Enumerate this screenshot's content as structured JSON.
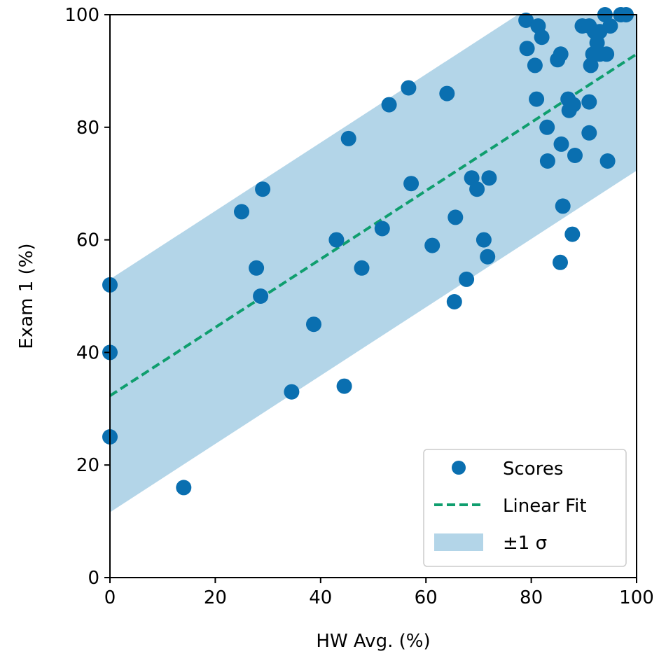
{
  "colors": {
    "scores": "#0a6fb0",
    "fit": "#0f9e6e",
    "band": "#b3d5e8",
    "axis": "#000000",
    "legend_border": "#cccccc"
  },
  "chart_data": {
    "type": "scatter",
    "title": "",
    "xlabel": "HW Avg. (%)",
    "ylabel": "Exam 1 (%)",
    "xlim": [
      0,
      100
    ],
    "ylim": [
      0,
      100
    ],
    "xticks": [
      "0",
      "20",
      "40",
      "60",
      "80",
      "100"
    ],
    "yticks": [
      "0",
      "20",
      "40",
      "60",
      "80",
      "100"
    ],
    "grid": false,
    "legend_position": "bottom-right",
    "fit": {
      "name": "Linear Fit",
      "intercept": 32.3,
      "slope": 0.607
    },
    "band": {
      "name": "±1 σ",
      "sigma": 20.7
    },
    "series": [
      {
        "name": "Scores",
        "points": [
          [
            0,
            52
          ],
          [
            0,
            40
          ],
          [
            0,
            25
          ],
          [
            14,
            16
          ],
          [
            25,
            65
          ],
          [
            27.8,
            55
          ],
          [
            28.6,
            50
          ],
          [
            29,
            69
          ],
          [
            34.5,
            33
          ],
          [
            38.7,
            45
          ],
          [
            43,
            60
          ],
          [
            44.5,
            34
          ],
          [
            45.3,
            78
          ],
          [
            47.8,
            55
          ],
          [
            51.7,
            62
          ],
          [
            53,
            84
          ],
          [
            56.7,
            87
          ],
          [
            57.2,
            70
          ],
          [
            61.2,
            59
          ],
          [
            64,
            86
          ],
          [
            65.4,
            49
          ],
          [
            65.6,
            64
          ],
          [
            67.7,
            53
          ],
          [
            68.7,
            71
          ],
          [
            69.7,
            69
          ],
          [
            71,
            60
          ],
          [
            71.7,
            57
          ],
          [
            72,
            71
          ],
          [
            79,
            99
          ],
          [
            79.2,
            94
          ],
          [
            80.7,
            91
          ],
          [
            81,
            85
          ],
          [
            81.3,
            98
          ],
          [
            82,
            96
          ],
          [
            83,
            80
          ],
          [
            83.1,
            74
          ],
          [
            85,
            92
          ],
          [
            85.6,
            93
          ],
          [
            85.5,
            56
          ],
          [
            85.7,
            77
          ],
          [
            86,
            66
          ],
          [
            87,
            85
          ],
          [
            87.2,
            83
          ],
          [
            87.8,
            61
          ],
          [
            88,
            84
          ],
          [
            88.3,
            75
          ],
          [
            89.7,
            98
          ],
          [
            91,
            98
          ],
          [
            91,
            84.5
          ],
          [
            91,
            79
          ],
          [
            91.3,
            91
          ],
          [
            91.7,
            93
          ],
          [
            92,
            97
          ],
          [
            92.5,
            95
          ],
          [
            93,
            93
          ],
          [
            93,
            97
          ],
          [
            94,
            100
          ],
          [
            94.3,
            93
          ],
          [
            94.5,
            74
          ],
          [
            95,
            98
          ],
          [
            97,
            100
          ],
          [
            98,
            100
          ]
        ]
      }
    ]
  }
}
